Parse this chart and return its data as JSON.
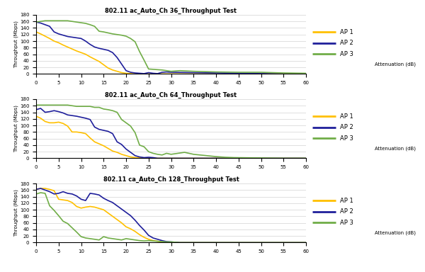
{
  "title1": "802.11 ac_Auto_Ch 36_Throughput Test",
  "title2": "802.11 ac_Auto_Ch 64_Throughput Test",
  "title3": "802.11 ca_Auto_Ch 128_Throughput Test",
  "xlabel": "Attenuation (dB)",
  "ylabel": "Throughput (Mbps)",
  "color_ap1": "#FFC000",
  "color_ap2": "#1F1F9B",
  "color_ap3": "#70AD47",
  "xlim": [
    0,
    60
  ],
  "ylim": [
    0,
    180
  ],
  "xticks": [
    0,
    5,
    10,
    15,
    20,
    25,
    30,
    35,
    40,
    45,
    50,
    55,
    60
  ],
  "yticks": [
    0,
    20,
    40,
    60,
    80,
    100,
    120,
    140,
    160,
    180
  ],
  "ch36_ap1_x": [
    0,
    1,
    2,
    3,
    4,
    5,
    6,
    7,
    8,
    9,
    10,
    11,
    12,
    13,
    14,
    15,
    16,
    17,
    18,
    19,
    20,
    21,
    22,
    23,
    24,
    25,
    60
  ],
  "ch36_ap1_y": [
    128,
    122,
    115,
    108,
    100,
    95,
    88,
    82,
    76,
    70,
    65,
    60,
    52,
    45,
    38,
    28,
    18,
    12,
    8,
    4,
    2,
    1,
    0,
    0,
    0,
    0,
    0
  ],
  "ch36_ap2_x": [
    0,
    1,
    2,
    3,
    4,
    5,
    6,
    7,
    8,
    9,
    10,
    11,
    12,
    13,
    14,
    15,
    16,
    17,
    18,
    19,
    20,
    21,
    22,
    23,
    24,
    25,
    26,
    27,
    28,
    29,
    30,
    35,
    40,
    45,
    50,
    55,
    60
  ],
  "ch36_ap2_y": [
    158,
    155,
    150,
    145,
    128,
    122,
    118,
    114,
    112,
    110,
    108,
    100,
    90,
    82,
    78,
    75,
    72,
    65,
    50,
    30,
    10,
    5,
    3,
    2,
    1,
    4,
    2,
    1,
    5,
    6,
    5,
    4,
    3,
    2,
    1,
    0,
    0
  ],
  "ch36_ap3_x": [
    0,
    1,
    2,
    3,
    4,
    5,
    6,
    7,
    8,
    9,
    10,
    11,
    12,
    13,
    14,
    15,
    16,
    17,
    18,
    19,
    20,
    21,
    22,
    23,
    24,
    25,
    26,
    27,
    28,
    29,
    30,
    32,
    35,
    40,
    45,
    50,
    55,
    60
  ],
  "ch36_ap3_y": [
    158,
    160,
    162,
    162,
    162,
    162,
    162,
    162,
    160,
    158,
    156,
    154,
    150,
    145,
    130,
    128,
    125,
    122,
    120,
    118,
    115,
    108,
    98,
    68,
    42,
    15,
    14,
    13,
    12,
    10,
    8,
    10,
    8,
    6,
    5,
    5,
    3,
    2
  ],
  "ch64_ap1_x": [
    0,
    1,
    2,
    3,
    4,
    5,
    6,
    7,
    8,
    9,
    10,
    11,
    12,
    13,
    14,
    15,
    16,
    17,
    18,
    19,
    20,
    21,
    22,
    23,
    24,
    25,
    26,
    60
  ],
  "ch64_ap1_y": [
    128,
    122,
    112,
    108,
    108,
    110,
    106,
    98,
    80,
    80,
    78,
    75,
    62,
    50,
    44,
    38,
    30,
    22,
    18,
    12,
    8,
    4,
    2,
    1,
    0,
    0,
    0,
    0
  ],
  "ch64_ap2_x": [
    0,
    1,
    2,
    3,
    4,
    5,
    6,
    7,
    8,
    9,
    10,
    11,
    12,
    13,
    14,
    15,
    16,
    17,
    18,
    19,
    20,
    21,
    22,
    23,
    24,
    25,
    26,
    27,
    30,
    35,
    40,
    45,
    50,
    55,
    60
  ],
  "ch64_ap2_y": [
    148,
    152,
    140,
    142,
    145,
    142,
    138,
    132,
    130,
    128,
    125,
    122,
    118,
    95,
    88,
    85,
    82,
    75,
    50,
    42,
    28,
    18,
    8,
    4,
    2,
    3,
    2,
    0,
    0,
    0,
    0,
    0,
    0,
    0,
    0
  ],
  "ch64_ap3_x": [
    0,
    1,
    2,
    3,
    4,
    5,
    6,
    7,
    8,
    9,
    10,
    11,
    12,
    13,
    14,
    15,
    16,
    17,
    18,
    19,
    20,
    21,
    22,
    23,
    24,
    25,
    26,
    27,
    28,
    29,
    30,
    31,
    32,
    33,
    35,
    40,
    42,
    44,
    50,
    55,
    60
  ],
  "ch64_ap3_y": [
    162,
    162,
    162,
    162,
    162,
    162,
    162,
    162,
    160,
    158,
    158,
    158,
    158,
    155,
    155,
    150,
    148,
    145,
    140,
    118,
    108,
    98,
    78,
    40,
    35,
    20,
    15,
    12,
    10,
    15,
    12,
    14,
    16,
    18,
    12,
    5,
    3,
    2,
    1,
    0,
    0
  ],
  "ch128_ap1_x": [
    0,
    1,
    2,
    3,
    4,
    5,
    6,
    7,
    8,
    9,
    10,
    11,
    12,
    13,
    14,
    15,
    16,
    17,
    18,
    19,
    20,
    21,
    22,
    23,
    24,
    25,
    26,
    27,
    28,
    29,
    30,
    31,
    32,
    60
  ],
  "ch128_ap1_y": [
    162,
    165,
    165,
    162,
    158,
    132,
    130,
    128,
    122,
    110,
    105,
    108,
    110,
    108,
    104,
    100,
    90,
    80,
    70,
    60,
    48,
    42,
    34,
    24,
    16,
    10,
    6,
    4,
    2,
    1,
    0,
    0,
    0,
    0
  ],
  "ch128_ap2_x": [
    0,
    1,
    2,
    3,
    4,
    5,
    6,
    7,
    8,
    9,
    10,
    11,
    12,
    13,
    14,
    15,
    16,
    17,
    18,
    19,
    20,
    21,
    22,
    23,
    24,
    25,
    26,
    27,
    28,
    29,
    30,
    31,
    32,
    60
  ],
  "ch128_ap2_y": [
    162,
    165,
    160,
    155,
    148,
    150,
    155,
    150,
    148,
    142,
    132,
    128,
    150,
    148,
    145,
    135,
    128,
    122,
    112,
    102,
    92,
    82,
    68,
    52,
    38,
    22,
    14,
    10,
    6,
    3,
    2,
    1,
    0,
    0
  ],
  "ch128_ap3_x": [
    0,
    1,
    2,
    3,
    4,
    5,
    6,
    7,
    8,
    9,
    10,
    11,
    12,
    13,
    14,
    15,
    16,
    17,
    18,
    19,
    20,
    21,
    22,
    23,
    24,
    25,
    26,
    27,
    28,
    29,
    30,
    31,
    32,
    60
  ],
  "ch128_ap3_y": [
    148,
    152,
    150,
    112,
    98,
    82,
    65,
    58,
    45,
    32,
    18,
    14,
    12,
    10,
    8,
    18,
    14,
    12,
    10,
    8,
    12,
    10,
    8,
    6,
    5,
    6,
    5,
    4,
    3,
    2,
    2,
    1,
    0,
    0
  ]
}
